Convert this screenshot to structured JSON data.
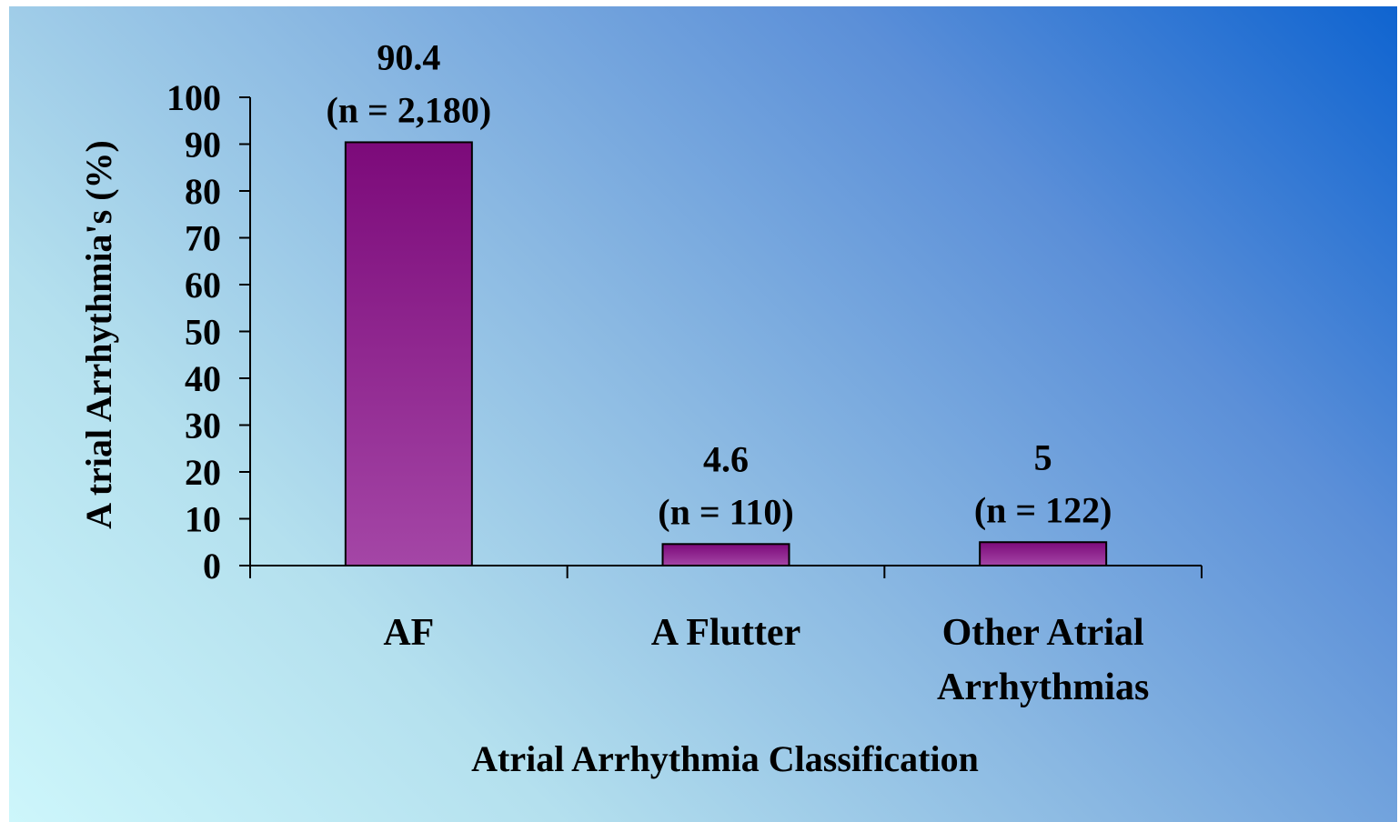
{
  "chart_data": {
    "type": "bar",
    "title": "",
    "xlabel": "Atrial Arrhythmia Classification",
    "ylabel": "A trial Arrhythmia's (%)",
    "categories": [
      [
        "AF"
      ],
      [
        "A Flutter"
      ],
      [
        "Other Atrial",
        "Arrhythmias"
      ]
    ],
    "values": [
      90.4,
      4.6,
      5
    ],
    "data_labels": [
      [
        "90.4",
        "(n = 2,180)"
      ],
      [
        "4.6",
        "(n = 110)"
      ],
      [
        "5",
        "(n = 122)"
      ]
    ],
    "yticks": [
      0,
      10,
      20,
      30,
      40,
      50,
      60,
      70,
      80,
      90,
      100
    ],
    "ylim": [
      0,
      100
    ],
    "grid": false,
    "legend": "none",
    "colors": {
      "bar_top": "#7c0a7a",
      "bar_bottom": "#a446a6",
      "bar_stroke": "#000000",
      "axis": "#000000"
    }
  }
}
